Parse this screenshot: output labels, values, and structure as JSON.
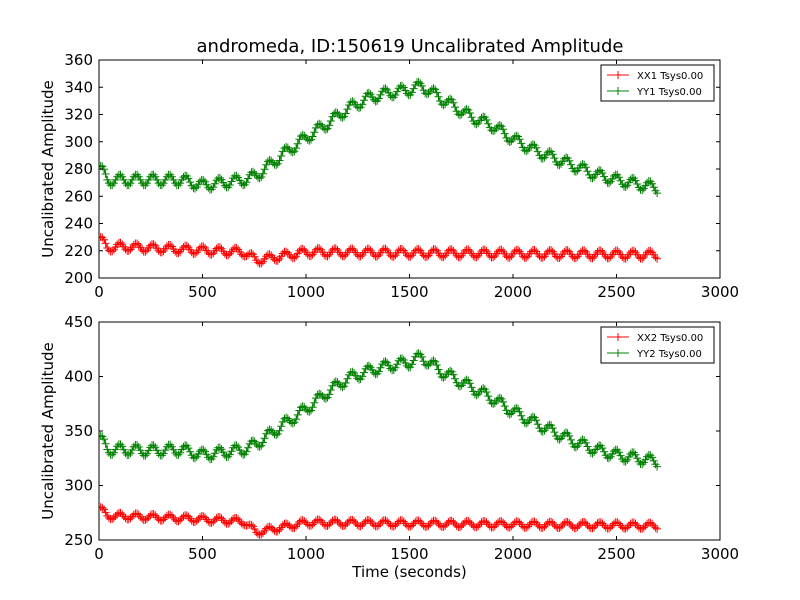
{
  "figure_title": "andromeda, ID:150619 Uncalibrated Amplitude",
  "chart_data": [
    {
      "type": "scatter",
      "title": "andromeda, ID:150619 Uncalibrated Amplitude",
      "xlabel": "",
      "ylabel": "Uncalibrated Amplitude",
      "xlim": [
        0,
        3000
      ],
      "ylim": [
        200,
        360
      ],
      "xticks": [
        0,
        500,
        1000,
        1500,
        2000,
        2500,
        3000
      ],
      "yticks": [
        200,
        220,
        240,
        260,
        280,
        300,
        320,
        340,
        360
      ],
      "legend_position": "top-right",
      "x_range": [
        0,
        2700
      ],
      "series": [
        {
          "name": "XX1 Tsys0.00",
          "color": "#ff0000",
          "marker": "plus",
          "keypoints": [
            [
              0,
              230
            ],
            [
              40,
              222
            ],
            [
              100,
              223
            ],
            [
              400,
              221
            ],
            [
              700,
              219
            ],
            [
              760,
              213
            ],
            [
              1000,
              219
            ],
            [
              2700,
              217
            ]
          ],
          "oscillation_amplitude": 3,
          "oscillation_period": 80
        },
        {
          "name": "YY1 Tsys0.00",
          "color": "#008000",
          "marker": "plus",
          "keypoints": [
            [
              0,
              282
            ],
            [
              40,
              272
            ],
            [
              100,
              272
            ],
            [
              250,
              272
            ],
            [
              400,
              272
            ],
            [
              500,
              268
            ],
            [
              700,
              272
            ],
            [
              760,
              275
            ],
            [
              900,
              292
            ],
            [
              1000,
              303
            ],
            [
              1100,
              313
            ],
            [
              1200,
              324
            ],
            [
              1300,
              332
            ],
            [
              1400,
              336
            ],
            [
              1500,
              338
            ],
            [
              1560,
              341
            ],
            [
              1650,
              332
            ],
            [
              1800,
              318
            ],
            [
              1900,
              312
            ],
            [
              2000,
              302
            ],
            [
              2100,
              294
            ],
            [
              2200,
              288
            ],
            [
              2300,
              282
            ],
            [
              2400,
              276
            ],
            [
              2500,
              272
            ],
            [
              2600,
              269
            ],
            [
              2700,
              266
            ]
          ],
          "oscillation_amplitude": 4,
          "oscillation_period": 80
        }
      ]
    },
    {
      "type": "scatter",
      "title": "",
      "xlabel": "Time (seconds)",
      "ylabel": "Uncalibrated Amplitude",
      "xlim": [
        0,
        3000
      ],
      "ylim": [
        250,
        450
      ],
      "xticks": [
        0,
        500,
        1000,
        1500,
        2000,
        2500,
        3000
      ],
      "yticks": [
        250,
        300,
        350,
        400,
        450
      ],
      "legend_position": "top-right",
      "x_range": [
        0,
        2700
      ],
      "series": [
        {
          "name": "XX2 Tsys0.00",
          "color": "#ff0000",
          "marker": "plus",
          "keypoints": [
            [
              0,
              280
            ],
            [
              40,
              272
            ],
            [
              100,
              272
            ],
            [
              400,
              270
            ],
            [
              700,
              267
            ],
            [
              760,
              257
            ],
            [
              1000,
              266
            ],
            [
              2700,
              263
            ]
          ],
          "oscillation_amplitude": 3,
          "oscillation_period": 80
        },
        {
          "name": "YY2 Tsys0.00",
          "color": "#008000",
          "marker": "plus",
          "keypoints": [
            [
              0,
              345
            ],
            [
              40,
              333
            ],
            [
              100,
              333
            ],
            [
              250,
              332
            ],
            [
              400,
              333
            ],
            [
              500,
              328
            ],
            [
              700,
              333
            ],
            [
              760,
              338
            ],
            [
              900,
              357
            ],
            [
              1000,
              370
            ],
            [
              1100,
              385
            ],
            [
              1200,
              398
            ],
            [
              1300,
              405
            ],
            [
              1400,
              410
            ],
            [
              1500,
              413
            ],
            [
              1560,
              418
            ],
            [
              1650,
              405
            ],
            [
              1800,
              390
            ],
            [
              1900,
              380
            ],
            [
              2000,
              368
            ],
            [
              2100,
              358
            ],
            [
              2200,
              349
            ],
            [
              2300,
              340
            ],
            [
              2400,
              333
            ],
            [
              2500,
              328
            ],
            [
              2600,
              325
            ],
            [
              2700,
              322
            ]
          ],
          "oscillation_amplitude": 5,
          "oscillation_period": 80
        }
      ]
    }
  ]
}
